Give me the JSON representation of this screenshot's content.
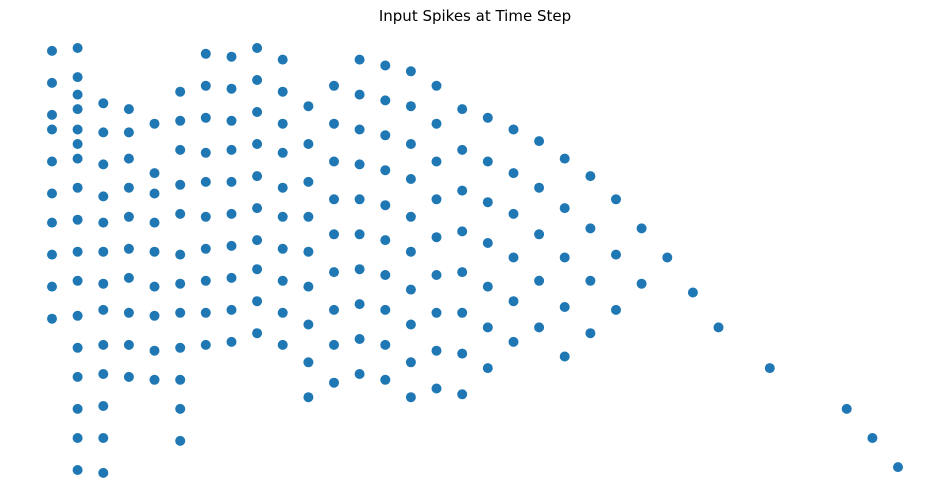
{
  "chart_data": {
    "type": "scatter",
    "title": "Input Spikes at Time Step",
    "xlabel": "",
    "ylabel": "",
    "axes_visible": false,
    "grid": false,
    "marker_color": "#1f77b4",
    "xlim": [
      -0.5,
      33.5
    ],
    "ylim": [
      0,
      7.8
    ],
    "points": [
      [
        0,
        7.45
      ],
      [
        0,
        6.9
      ],
      [
        0,
        6.35
      ],
      [
        0,
        6.1
      ],
      [
        0,
        5.55
      ],
      [
        0,
        5.0
      ],
      [
        0,
        4.5
      ],
      [
        0,
        3.95
      ],
      [
        0,
        3.4
      ],
      [
        0,
        2.85
      ],
      [
        1,
        7.5
      ],
      [
        1,
        7.0
      ],
      [
        1,
        6.7
      ],
      [
        1,
        6.45
      ],
      [
        1,
        6.1
      ],
      [
        1,
        5.85
      ],
      [
        1,
        5.6
      ],
      [
        1,
        5.1
      ],
      [
        1,
        4.55
      ],
      [
        1,
        4.0
      ],
      [
        1,
        3.5
      ],
      [
        1,
        2.9
      ],
      [
        1,
        2.35
      ],
      [
        1,
        1.85
      ],
      [
        1,
        1.3
      ],
      [
        1,
        0.8
      ],
      [
        1,
        0.25
      ],
      [
        2,
        6.55
      ],
      [
        2,
        6.05
      ],
      [
        2,
        5.5
      ],
      [
        2,
        4.95
      ],
      [
        2,
        4.5
      ],
      [
        2,
        4.0
      ],
      [
        2,
        3.45
      ],
      [
        2,
        3.0
      ],
      [
        2,
        2.4
      ],
      [
        2,
        1.9
      ],
      [
        2,
        1.35
      ],
      [
        2,
        0.8
      ],
      [
        2,
        0.2
      ],
      [
        3,
        6.45
      ],
      [
        3,
        6.05
      ],
      [
        3,
        5.6
      ],
      [
        3,
        5.1
      ],
      [
        3,
        4.6
      ],
      [
        3,
        4.05
      ],
      [
        3,
        3.55
      ],
      [
        3,
        2.95
      ],
      [
        3,
        2.4
      ],
      [
        3,
        1.85
      ],
      [
        4,
        6.2
      ],
      [
        4,
        5.35
      ],
      [
        4,
        5.0
      ],
      [
        4,
        4.5
      ],
      [
        4,
        4.0
      ],
      [
        4,
        3.4
      ],
      [
        4,
        2.9
      ],
      [
        4,
        2.3
      ],
      [
        4,
        1.8
      ],
      [
        5,
        6.75
      ],
      [
        5,
        6.25
      ],
      [
        5,
        5.75
      ],
      [
        5,
        5.15
      ],
      [
        5,
        4.65
      ],
      [
        5,
        3.95
      ],
      [
        5,
        3.45
      ],
      [
        5,
        2.95
      ],
      [
        5,
        2.35
      ],
      [
        5,
        1.8
      ],
      [
        5,
        1.3
      ],
      [
        5,
        0.75
      ],
      [
        6,
        7.4
      ],
      [
        6,
        6.85
      ],
      [
        6,
        6.3
      ],
      [
        6,
        5.7
      ],
      [
        6,
        5.2
      ],
      [
        6,
        4.6
      ],
      [
        6,
        4.05
      ],
      [
        6,
        3.5
      ],
      [
        6,
        2.95
      ],
      [
        6,
        2.4
      ],
      [
        7,
        7.35
      ],
      [
        7,
        6.8
      ],
      [
        7,
        6.25
      ],
      [
        7,
        5.75
      ],
      [
        7,
        5.2
      ],
      [
        7,
        4.65
      ],
      [
        7,
        4.1
      ],
      [
        7,
        3.55
      ],
      [
        7,
        3.0
      ],
      [
        7,
        2.45
      ],
      [
        8,
        7.5
      ],
      [
        8,
        6.95
      ],
      [
        8,
        6.4
      ],
      [
        8,
        5.85
      ],
      [
        8,
        5.3
      ],
      [
        8,
        4.75
      ],
      [
        8,
        4.2
      ],
      [
        8,
        3.7
      ],
      [
        8,
        3.15
      ],
      [
        8,
        2.6
      ],
      [
        9,
        7.3
      ],
      [
        9,
        6.75
      ],
      [
        9,
        6.2
      ],
      [
        9,
        5.7
      ],
      [
        9,
        5.1
      ],
      [
        9,
        4.6
      ],
      [
        9,
        4.05
      ],
      [
        9,
        3.5
      ],
      [
        9,
        2.95
      ],
      [
        9,
        2.4
      ],
      [
        10,
        6.5
      ],
      [
        10,
        5.85
      ],
      [
        10,
        5.2
      ],
      [
        10,
        4.6
      ],
      [
        10,
        4.0
      ],
      [
        10,
        3.4
      ],
      [
        10,
        2.75
      ],
      [
        10,
        2.1
      ],
      [
        10,
        1.5
      ],
      [
        11,
        6.85
      ],
      [
        11,
        6.2
      ],
      [
        11,
        5.55
      ],
      [
        11,
        4.9
      ],
      [
        11,
        4.3
      ],
      [
        11,
        3.65
      ],
      [
        11,
        3.0
      ],
      [
        11,
        2.4
      ],
      [
        11,
        1.75
      ],
      [
        12,
        7.3
      ],
      [
        12,
        6.7
      ],
      [
        12,
        6.1
      ],
      [
        12,
        5.5
      ],
      [
        12,
        4.9
      ],
      [
        12,
        4.3
      ],
      [
        12,
        3.7
      ],
      [
        12,
        3.1
      ],
      [
        12,
        2.5
      ],
      [
        12,
        1.9
      ],
      [
        13,
        7.2
      ],
      [
        13,
        6.6
      ],
      [
        13,
        6.0
      ],
      [
        13,
        5.4
      ],
      [
        13,
        4.8
      ],
      [
        13,
        4.2
      ],
      [
        13,
        3.6
      ],
      [
        13,
        3.0
      ],
      [
        13,
        2.4
      ],
      [
        13,
        1.8
      ],
      [
        14,
        7.1
      ],
      [
        14,
        6.5
      ],
      [
        14,
        5.85
      ],
      [
        14,
        5.25
      ],
      [
        14,
        4.6
      ],
      [
        14,
        4.0
      ],
      [
        14,
        3.35
      ],
      [
        14,
        2.75
      ],
      [
        14,
        2.1
      ],
      [
        14,
        1.5
      ],
      [
        15,
        6.85
      ],
      [
        15,
        6.2
      ],
      [
        15,
        5.55
      ],
      [
        15,
        4.9
      ],
      [
        15,
        4.25
      ],
      [
        15,
        3.6
      ],
      [
        15,
        2.95
      ],
      [
        15,
        2.3
      ],
      [
        15,
        1.65
      ],
      [
        16,
        6.45
      ],
      [
        16,
        5.75
      ],
      [
        16,
        5.05
      ],
      [
        16,
        4.35
      ],
      [
        16,
        3.65
      ],
      [
        16,
        2.95
      ],
      [
        16,
        2.25
      ],
      [
        16,
        1.55
      ],
      [
        17,
        6.3
      ],
      [
        17,
        5.55
      ],
      [
        17,
        4.85
      ],
      [
        17,
        4.15
      ],
      [
        17,
        3.4
      ],
      [
        17,
        2.7
      ],
      [
        17,
        2.0
      ],
      [
        18,
        6.1
      ],
      [
        18,
        5.35
      ],
      [
        18,
        4.65
      ],
      [
        18,
        3.9
      ],
      [
        18,
        3.15
      ],
      [
        18,
        2.45
      ],
      [
        19,
        5.9
      ],
      [
        19,
        5.1
      ],
      [
        19,
        4.3
      ],
      [
        19,
        3.5
      ],
      [
        19,
        2.7
      ],
      [
        20,
        5.6
      ],
      [
        20,
        4.75
      ],
      [
        20,
        3.9
      ],
      [
        20,
        3.05
      ],
      [
        20,
        2.2
      ],
      [
        21,
        5.3
      ],
      [
        21,
        4.4
      ],
      [
        21,
        3.5
      ],
      [
        21,
        2.6
      ],
      [
        22,
        4.9
      ],
      [
        22,
        3.95
      ],
      [
        22,
        3.0
      ],
      [
        23,
        4.4
      ],
      [
        23,
        3.45
      ],
      [
        24,
        3.9
      ],
      [
        25,
        3.3
      ],
      [
        26,
        2.7
      ],
      [
        28,
        2.0
      ],
      [
        31,
        1.3
      ],
      [
        32,
        0.8
      ],
      [
        33,
        0.3
      ]
    ]
  }
}
